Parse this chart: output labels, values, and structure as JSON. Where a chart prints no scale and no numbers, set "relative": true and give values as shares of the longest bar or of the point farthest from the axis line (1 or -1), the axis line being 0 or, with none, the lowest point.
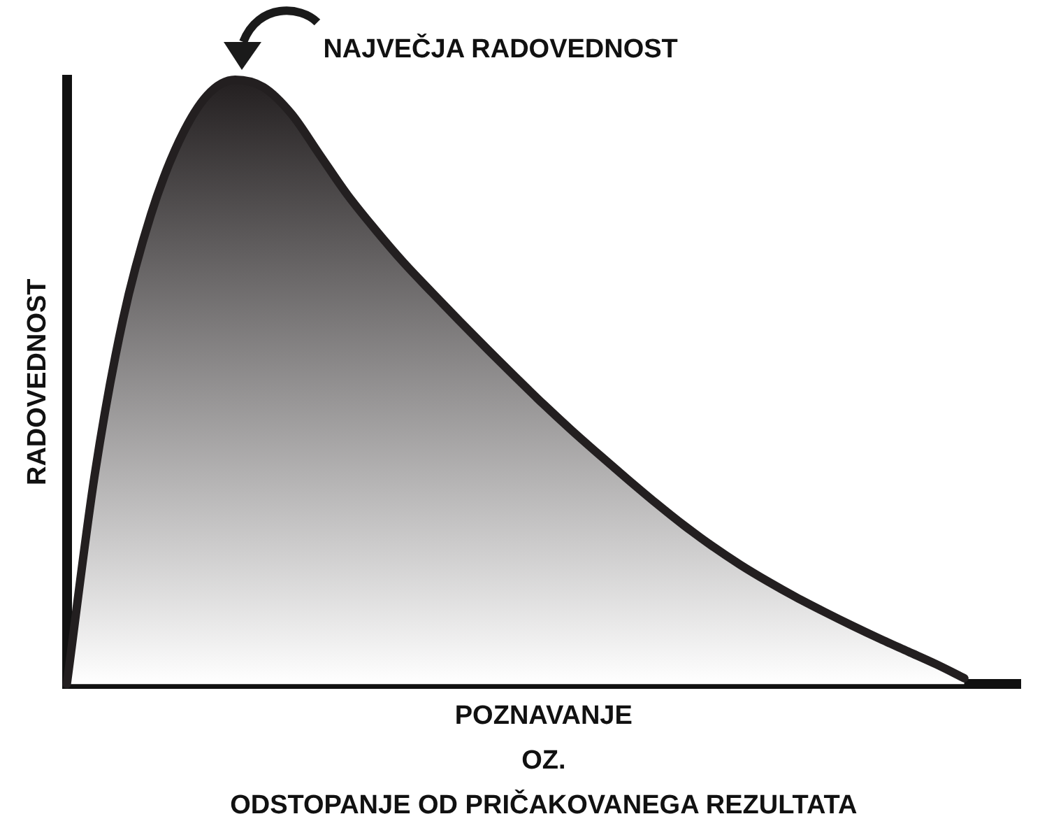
{
  "chart_data": {
    "type": "area",
    "xlabel": "POZNAVANJE\nOZ.\nODSTOPANJE OD PRIČAKOVANEGA REZULTATA",
    "ylabel": "RADOVEDNOST",
    "annotations": [
      "NAJVEČJA RADOVEDNOST"
    ],
    "relative": true,
    "categories": [
      null,
      null,
      null,
      null,
      null,
      null,
      null,
      null,
      null,
      null,
      null,
      null,
      null,
      null,
      null,
      null,
      null,
      null,
      null,
      null,
      null,
      null,
      null,
      null,
      null,
      null,
      null,
      null,
      null,
      null,
      null,
      null,
      null,
      null,
      null
    ],
    "color": "#231f20",
    "values": [
      0,
      0.348,
      0.603,
      0.777,
      0.898,
      0.974,
      1,
      0.988,
      0.944,
      0.877,
      0.81,
      0.752,
      0.698,
      0.649,
      0.601,
      0.554,
      0.508,
      0.463,
      0.42,
      0.379,
      0.339,
      0.3,
      0.263,
      0.229,
      0.198,
      0.17,
      0.144,
      0.12,
      0.097,
      0.075,
      0.054,
      0.033,
      0.01,
      null,
      null
    ]
  }
}
